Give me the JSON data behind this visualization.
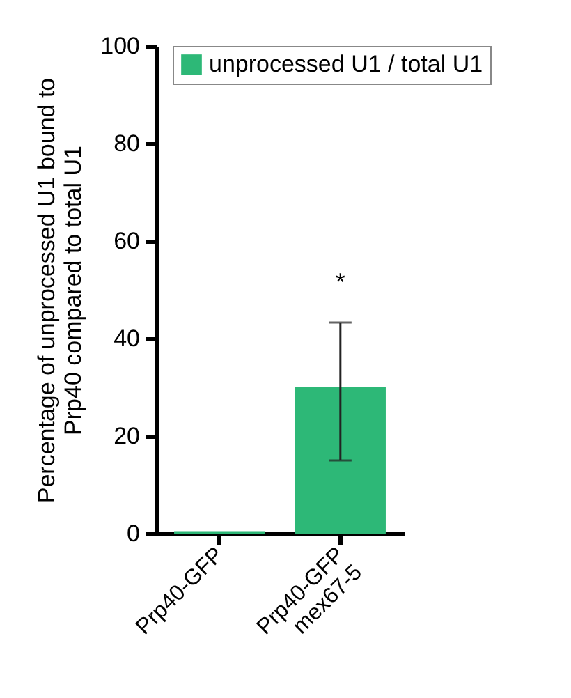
{
  "chart_data": {
    "type": "bar",
    "ylabel": "Percentage of unprocessed U1 bound to\nPrp40 compared to total U1",
    "categories": [
      "Prp40-GFP",
      "Prp40-GFP mex67-5"
    ],
    "series": [
      {
        "name": "unprocessed U1 / total U1",
        "color": "#2db877",
        "values": [
          0.5,
          30
        ],
        "errors": [
          null,
          [
            15,
            43.3
          ]
        ]
      }
    ],
    "ylim": [
      0,
      100
    ],
    "yticks": [
      0,
      20,
      40,
      60,
      80,
      100
    ],
    "legend": "top right",
    "annotations": [
      "*"
    ]
  }
}
